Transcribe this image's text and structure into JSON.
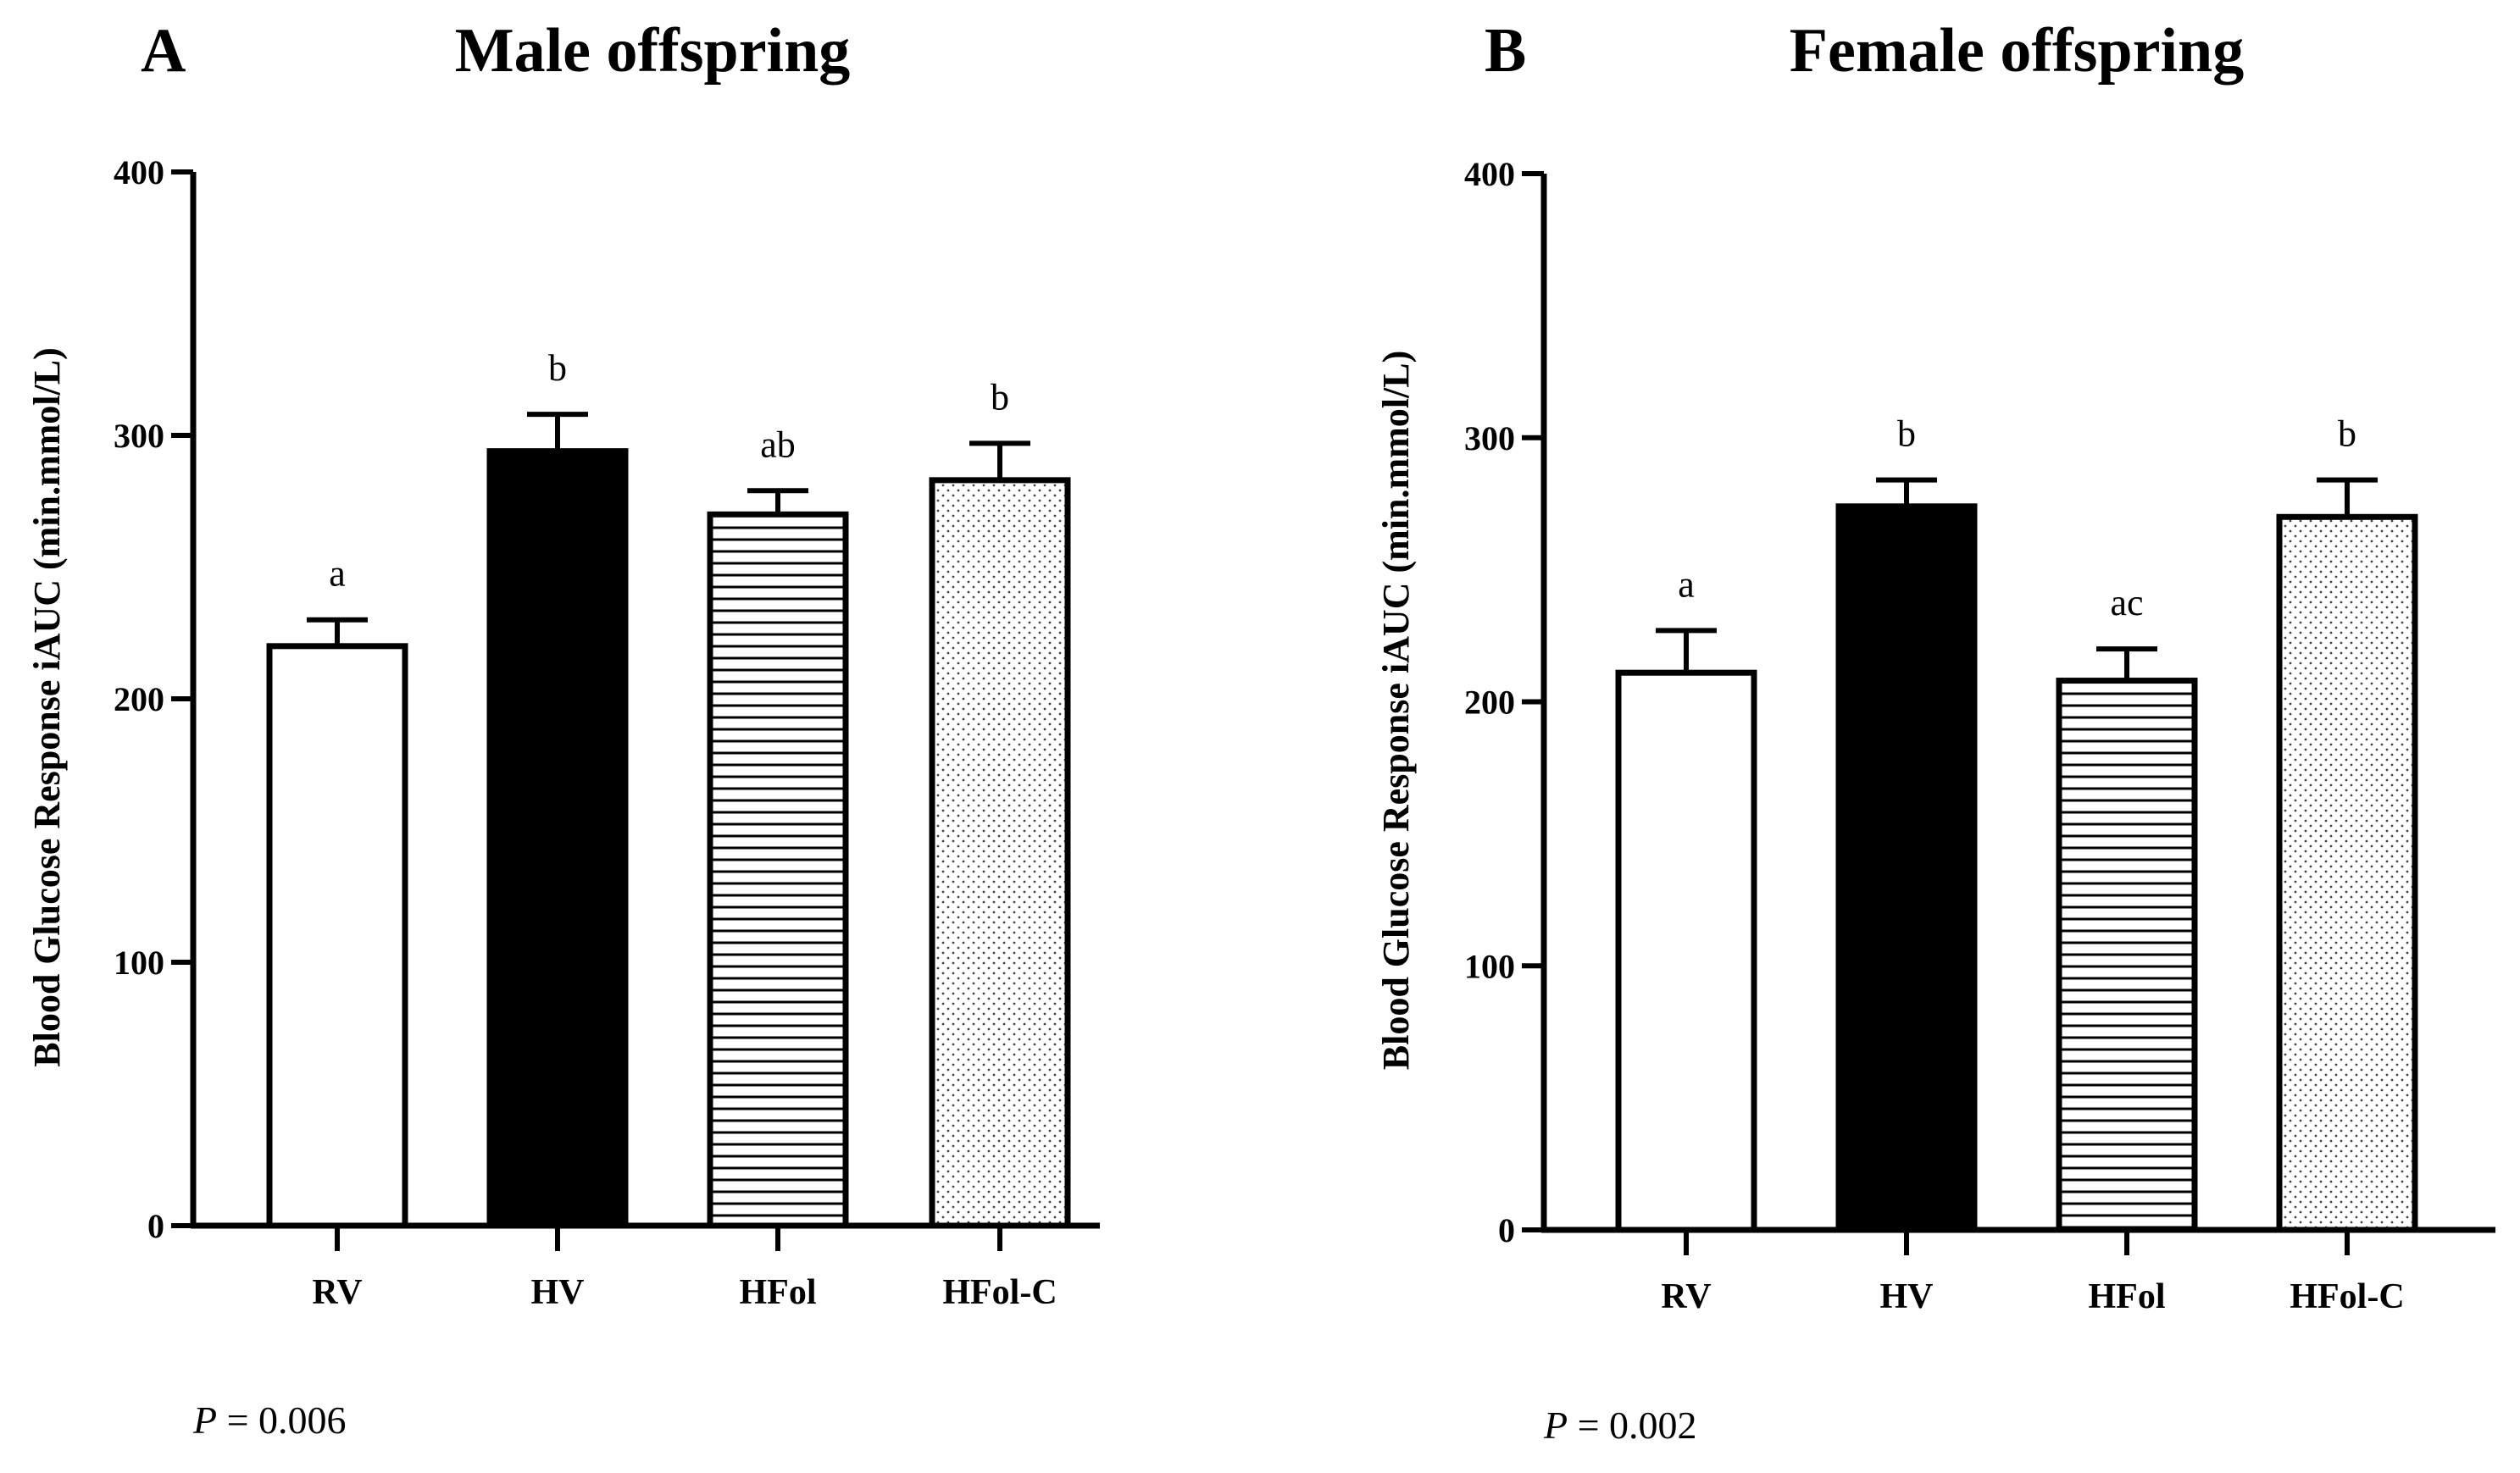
{
  "chart_data": [
    {
      "type": "bar",
      "panel_letter": "A",
      "title": "Male offspring",
      "ylabel": "Blood Glucose Response iAUC (min.mmol/L)",
      "xlabel": "",
      "ylim": [
        0,
        400
      ],
      "yticks": [
        0,
        100,
        200,
        300,
        400
      ],
      "categories": [
        "RV",
        "HV",
        "HFol",
        "HFol-C"
      ],
      "values": [
        220,
        294,
        270,
        283
      ],
      "errors": [
        10,
        14,
        9,
        14
      ],
      "significance_labels": [
        "a",
        "b",
        "ab",
        "b"
      ],
      "patterns": [
        "white",
        "black",
        "horizontal-lines",
        "dots"
      ],
      "p_value": {
        "label": "P",
        "text": " = 0.006"
      }
    },
    {
      "type": "bar",
      "panel_letter": "B",
      "title": "Female offspring",
      "ylabel": "Blood Glucose Response iAUC (min.mmol/L)",
      "xlabel": "",
      "ylim": [
        0,
        400
      ],
      "yticks": [
        0,
        100,
        200,
        300,
        400
      ],
      "categories": [
        "RV",
        "HV",
        "HFol",
        "HFol-C"
      ],
      "values": [
        211,
        274,
        208,
        270
      ],
      "errors": [
        16,
        10,
        12,
        14
      ],
      "significance_labels": [
        "a",
        "b",
        "ac",
        "b"
      ],
      "patterns": [
        "white",
        "black",
        "horizontal-lines",
        "dots"
      ],
      "p_value": {
        "label": "P",
        "text": " = 0.002"
      }
    }
  ]
}
